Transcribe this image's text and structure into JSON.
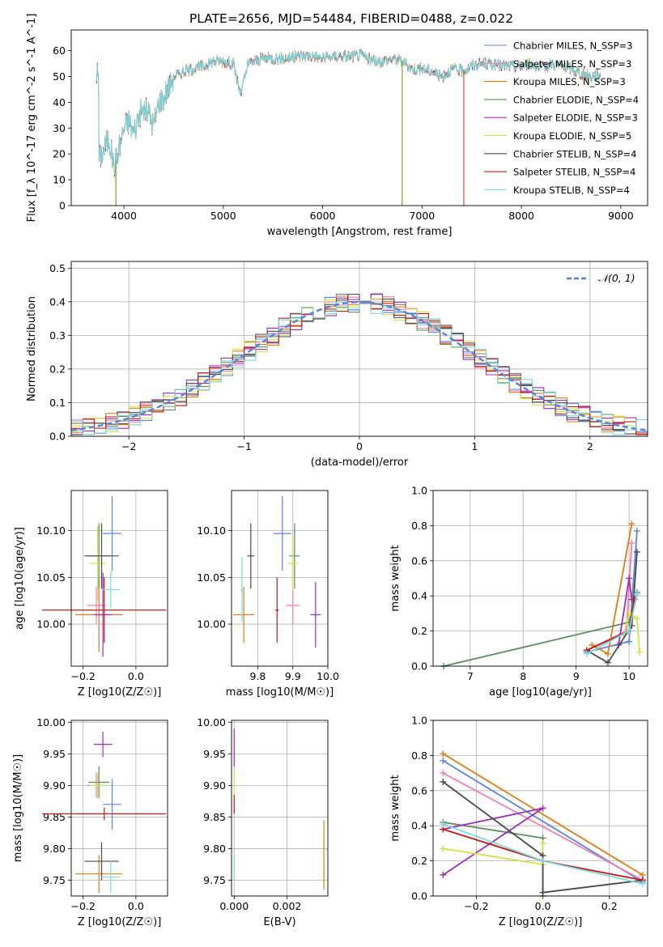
{
  "chart_data": [
    {
      "id": "spectrum",
      "type": "line",
      "title": "PLATE=2656, MJD=54484, FIBERID=0488, z=0.022",
      "xlabel": "wavelength [Angstrom, rest frame]",
      "ylabel": "Flux [f_λ 10^-17 erg cm^-2 s^-1 A^-1]",
      "xlim": [
        3470,
        9270
      ],
      "ylim": [
        0,
        68
      ],
      "xticks": [
        4000,
        5000,
        6000,
        7000,
        8000,
        9000
      ],
      "yticks": [
        0,
        10,
        20,
        30,
        40,
        50,
        60
      ],
      "grid": false,
      "legend_position": "top-right",
      "legend": [
        {
          "label": "Chabrier MILES, N_SSP=3",
          "color": "#5b84e0"
        },
        {
          "label": "Salpeter MILES, N_SSP=3",
          "color": "#ee7fb5"
        },
        {
          "label": "Kroupa MILES, N_SSP=3",
          "color": "#e07c1a"
        },
        {
          "label": "Chabrier ELODIE, N_SSP=4",
          "color": "#5e8c5e"
        },
        {
          "label": "Salpeter ELODIE, N_SSP=3",
          "color": "#9b2fb5"
        },
        {
          "label": "Kroupa ELODIE, N_SSP=5",
          "color": "#d4e04a"
        },
        {
          "label": "Chabrier STELIB, N_SSP=4",
          "color": "#4a4a4a"
        },
        {
          "label": "Salpeter STELIB, N_SSP=4",
          "color": "#c01b1b"
        },
        {
          "label": "Kroupa STELIB, N_SSP=4",
          "color": "#7fd9dd"
        }
      ],
      "series_envelope": {
        "x": [
          3750,
          3800,
          3850,
          3900,
          3950,
          4000,
          4050,
          4100,
          4150,
          4200,
          4250,
          4300,
          4350,
          4400,
          4450,
          4500,
          4600,
          4700,
          4800,
          4900,
          5000,
          5100,
          5175,
          5250,
          5400,
          5600,
          5800,
          5900,
          6000,
          6200,
          6400,
          6500,
          6600,
          6700,
          6800,
          6900,
          7000,
          7100,
          7200,
          7300,
          7400,
          7500,
          7600,
          7700,
          7800,
          7900,
          8000,
          8100,
          8200,
          8300,
          8400,
          8500,
          8600,
          8700,
          8800
        ],
        "y": [
          18,
          22,
          26,
          15,
          22,
          30,
          33,
          28,
          35,
          37,
          36,
          31,
          40,
          42,
          46,
          50,
          52,
          53,
          54,
          56,
          56,
          55,
          43,
          55,
          57,
          57,
          58,
          58,
          57,
          58,
          58,
          56,
          56,
          57,
          56,
          53,
          53,
          52,
          50,
          53,
          52,
          54,
          55,
          55,
          54,
          54,
          54,
          55,
          53,
          55,
          54,
          53,
          51,
          50,
          51
        ]
      },
      "drops": [
        {
          "x": 3920,
          "color": "#a0a03a"
        },
        {
          "x": 6800,
          "color": "#a0a03a"
        },
        {
          "x": 7420,
          "color": "#e05c3a"
        }
      ]
    },
    {
      "id": "residuals",
      "type": "line",
      "xlabel": "(data-model)/error",
      "ylabel": "Normed distribution",
      "xlim": [
        -2.5,
        2.5
      ],
      "ylim": [
        0,
        0.52
      ],
      "xticks": [
        -2,
        -1,
        0,
        1,
        2
      ],
      "yticks": [
        0.0,
        0.1,
        0.2,
        0.3,
        0.4,
        0.5
      ],
      "grid": true,
      "legend_position": "top-right",
      "legend": [
        {
          "label": "𝒩(0, 1)",
          "color": "#5b84e0",
          "style": "dashed"
        }
      ],
      "histogram": {
        "x_start": -2.5,
        "bin_width": 0.1,
        "bins": 50,
        "series_count": 9
      }
    },
    {
      "id": "age-vs-Z",
      "type": "scatter",
      "xlabel": "Z [log10(Z/Z☉)]",
      "ylabel": "age  [log10(age/yr)]",
      "xlim": [
        -0.245,
        0.12
      ],
      "ylim": [
        9.955,
        10.143
      ],
      "xticks": [
        -0.2,
        0.0
      ],
      "yticks": [
        10.0,
        10.05,
        10.1
      ],
      "grid": true,
      "points": [
        {
          "x": -0.09,
          "y": 10.097,
          "xerr": 0.035,
          "yerr": 0.04,
          "color": "#5b84e0"
        },
        {
          "x": -0.15,
          "y": 10.02,
          "xerr": 0.035,
          "yerr": 0.02,
          "color": "#ee7fb5"
        },
        {
          "x": -0.14,
          "y": 10.01,
          "xerr": 0.09,
          "yerr": 0.04,
          "color": "#e07c1a"
        },
        {
          "x": -0.14,
          "y": 10.073,
          "xerr": 0.04,
          "yerr": 0.035,
          "color": "#5e8c5e"
        },
        {
          "x": -0.125,
          "y": 10.01,
          "xerr": 0.035,
          "yerr": 0.045,
          "color": "#9b2fb5"
        },
        {
          "x": -0.145,
          "y": 10.065,
          "xerr": 0.03,
          "yerr": 0.04,
          "color": "#d4e04a"
        },
        {
          "x": -0.13,
          "y": 10.073,
          "xerr": 0.065,
          "yerr": 0.035,
          "color": "#4a4a4a"
        },
        {
          "x": -0.12,
          "y": 10.015,
          "xerr": 0.235,
          "yerr": 0.035,
          "color": "#c01b1b"
        },
        {
          "x": -0.095,
          "y": 10.037,
          "xerr": 0.035,
          "yerr": 0.02,
          "color": "#7fd9dd"
        }
      ]
    },
    {
      "id": "age-vs-mass",
      "type": "scatter",
      "xlabel": "mass [log10(M/M☉)]",
      "ylabel": "",
      "xlim": [
        9.725,
        10.0
      ],
      "ylim": [
        9.955,
        10.143
      ],
      "xticks": [
        9.8,
        9.9,
        10.0
      ],
      "yticks": [
        10.0,
        10.05,
        10.1
      ],
      "grid": true,
      "points": [
        {
          "x": 9.87,
          "y": 10.097,
          "xerr": 0.025,
          "yerr": 0.04,
          "color": "#5b84e0"
        },
        {
          "x": 9.9,
          "y": 10.02,
          "xerr": 0.02,
          "yerr": 0.02,
          "color": "#ee7fb5"
        },
        {
          "x": 9.76,
          "y": 10.01,
          "xerr": 0.03,
          "yerr": 0.03,
          "color": "#e07c1a"
        },
        {
          "x": 9.905,
          "y": 10.073,
          "xerr": 0.015,
          "yerr": 0.035,
          "color": "#5e8c5e"
        },
        {
          "x": 9.965,
          "y": 10.01,
          "xerr": 0.015,
          "yerr": 0.035,
          "color": "#9b2fb5"
        },
        {
          "x": 9.9,
          "y": 10.065,
          "xerr": 0.015,
          "yerr": 0.03,
          "color": "#d4e04a"
        },
        {
          "x": 9.78,
          "y": 10.073,
          "xerr": 0.01,
          "yerr": 0.035,
          "color": "#4a4a4a"
        },
        {
          "x": 9.855,
          "y": 10.015,
          "xerr": 0.005,
          "yerr": 0.035,
          "color": "#c01b1b"
        },
        {
          "x": 9.755,
          "y": 10.037,
          "xerr": 0.005,
          "yerr": 0.035,
          "color": "#7fd9dd"
        }
      ]
    },
    {
      "id": "mass-weight-vs-age",
      "type": "line",
      "xlabel": "age  [log10(age/yr)]",
      "ylabel": "mass weight",
      "xlim": [
        6.3,
        10.35
      ],
      "ylim": [
        0.0,
        1.0
      ],
      "xticks": [
        7,
        8,
        9,
        10
      ],
      "yticks": [
        0.0,
        0.2,
        0.4,
        0.6,
        0.8,
        1.0
      ],
      "grid": true,
      "series": [
        {
          "color": "#5b84e0",
          "x": [
            9.2,
            10.0,
            10.15
          ],
          "y": [
            0.08,
            0.14,
            0.77
          ]
        },
        {
          "color": "#ee7fb5",
          "x": [
            9.2,
            9.95,
            10.05
          ],
          "y": [
            0.09,
            0.2,
            0.7
          ]
        },
        {
          "color": "#e07c1a",
          "x": [
            9.3,
            9.6,
            10.05
          ],
          "y": [
            0.12,
            0.07,
            0.81
          ]
        },
        {
          "color": "#5e8c5e",
          "x": [
            6.5,
            10.0,
            10.15
          ],
          "y": [
            0.0,
            0.25,
            0.42
          ]
        },
        {
          "color": "#9b2fb5",
          "x": [
            9.8,
            10.0,
            10.05
          ],
          "y": [
            0.12,
            0.5,
            0.38
          ]
        },
        {
          "color": "#d4e04a",
          "x": [
            9.9,
            10.0,
            10.15,
            10.2
          ],
          "y": [
            0.18,
            0.3,
            0.27,
            0.08
          ]
        },
        {
          "color": "#4a4a4a",
          "x": [
            9.2,
            9.6,
            10.05,
            10.15
          ],
          "y": [
            0.09,
            0.02,
            0.23,
            0.65
          ]
        },
        {
          "color": "#c01b1b",
          "x": [
            9.2,
            10.0,
            10.1
          ],
          "y": [
            0.09,
            0.2,
            0.38
          ]
        },
        {
          "color": "#7fd9dd",
          "x": [
            9.2,
            10.0,
            10.15
          ],
          "y": [
            0.07,
            0.2,
            0.41
          ]
        }
      ]
    },
    {
      "id": "mass-vs-Z",
      "type": "scatter",
      "xlabel": "Z [log10(Z/Z☉)]",
      "ylabel": "mass [log10(M/M☉)]",
      "xlim": [
        -0.245,
        0.12
      ],
      "ylim": [
        9.725,
        10.003
      ],
      "xticks": [
        -0.2,
        0.0
      ],
      "yticks": [
        9.75,
        9.8,
        9.85,
        9.9,
        9.95,
        10.0
      ],
      "grid": true,
      "points": [
        {
          "x": -0.09,
          "y": 9.87,
          "xerr": 0.035,
          "yerr": 0.04,
          "color": "#5b84e0"
        },
        {
          "x": -0.15,
          "y": 9.9,
          "xerr": 0.035,
          "yerr": 0.02,
          "color": "#ee7fb5"
        },
        {
          "x": -0.14,
          "y": 9.76,
          "xerr": 0.09,
          "yerr": 0.03,
          "color": "#e07c1a"
        },
        {
          "x": -0.14,
          "y": 9.905,
          "xerr": 0.04,
          "yerr": 0.025,
          "color": "#5e8c5e"
        },
        {
          "x": -0.125,
          "y": 9.965,
          "xerr": 0.035,
          "yerr": 0.02,
          "color": "#9b2fb5"
        },
        {
          "x": -0.145,
          "y": 9.9,
          "xerr": 0.03,
          "yerr": 0.02,
          "color": "#d4e04a"
        },
        {
          "x": -0.13,
          "y": 9.78,
          "xerr": 0.065,
          "yerr": 0.03,
          "color": "#4a4a4a"
        },
        {
          "x": -0.12,
          "y": 9.855,
          "xerr": 0.235,
          "yerr": 0.01,
          "color": "#c01b1b"
        },
        {
          "x": -0.095,
          "y": 9.755,
          "xerr": 0.035,
          "yerr": 0.025,
          "color": "#7fd9dd"
        }
      ]
    },
    {
      "id": "mass-vs-EBV",
      "type": "scatter",
      "xlabel": "E(B-V)",
      "ylabel": "",
      "xlim": [
        -0.0001,
        0.00355
      ],
      "ylim": [
        9.725,
        10.003
      ],
      "xticks": [
        0.0,
        0.002
      ],
      "tick_labels": [
        "0.000",
        "0.002"
      ],
      "yticks": [
        9.75,
        9.8,
        9.85,
        9.9,
        9.95,
        10.0
      ],
      "grid": true,
      "points": [
        {
          "x": 0.0,
          "y": 9.96,
          "yerr": 0.03,
          "color": "#9b2fb5"
        },
        {
          "x": 0.0,
          "y": 9.9,
          "yerr": 0.025,
          "color": "#d4e04a"
        },
        {
          "x": 0.0,
          "y": 9.87,
          "yerr": 0.015,
          "color": "#c01b1b"
        },
        {
          "x": 0.0,
          "y": 9.77,
          "yerr": 0.02,
          "color": "#7fd9dd"
        },
        {
          "x": 0.0034,
          "y": 9.79,
          "yerr": 0.055,
          "color": "#e07c1a"
        }
      ]
    },
    {
      "id": "mass-weight-vs-Z",
      "type": "line",
      "xlabel": "Z [log10(Z/Z☉)]",
      "ylabel": "mass weight",
      "xlim": [
        -0.33,
        0.315
      ],
      "ylim": [
        0.0,
        1.0
      ],
      "xticks": [
        -0.2,
        0.0,
        0.2
      ],
      "yticks": [
        0.0,
        0.2,
        0.4,
        0.6,
        0.8,
        1.0
      ],
      "grid": true,
      "series": [
        {
          "color": "#5b84e0",
          "x": [
            -0.3,
            0.3
          ],
          "y": [
            0.77,
            0.08
          ]
        },
        {
          "color": "#ee7fb5",
          "x": [
            -0.3,
            0.3
          ],
          "y": [
            0.7,
            0.09
          ]
        },
        {
          "color": "#e07c1a",
          "x": [
            -0.3,
            0.3
          ],
          "y": [
            0.81,
            0.12
          ]
        },
        {
          "color": "#5e8c5e",
          "x": [
            -0.3,
            0.0,
            0.0
          ],
          "y": [
            0.42,
            0.33,
            0.0
          ]
        },
        {
          "color": "#9b2fb5",
          "x": [
            -0.3,
            0.0,
            -0.3
          ],
          "y": [
            0.12,
            0.5,
            0.38
          ]
        },
        {
          "color": "#d4e04a",
          "x": [
            -0.3,
            0.0,
            0.0
          ],
          "y": [
            0.27,
            0.18,
            0.3
          ]
        },
        {
          "color": "#4a4a4a",
          "x": [
            -0.3,
            0.0,
            0.0,
            0.3
          ],
          "y": [
            0.65,
            0.23,
            0.02,
            0.09
          ]
        },
        {
          "color": "#c01b1b",
          "x": [
            -0.3,
            0.0,
            0.3
          ],
          "y": [
            0.38,
            0.2,
            0.09
          ]
        },
        {
          "color": "#7fd9dd",
          "x": [
            -0.3,
            0.0,
            0.3
          ],
          "y": [
            0.41,
            0.2,
            0.07
          ]
        }
      ]
    }
  ]
}
